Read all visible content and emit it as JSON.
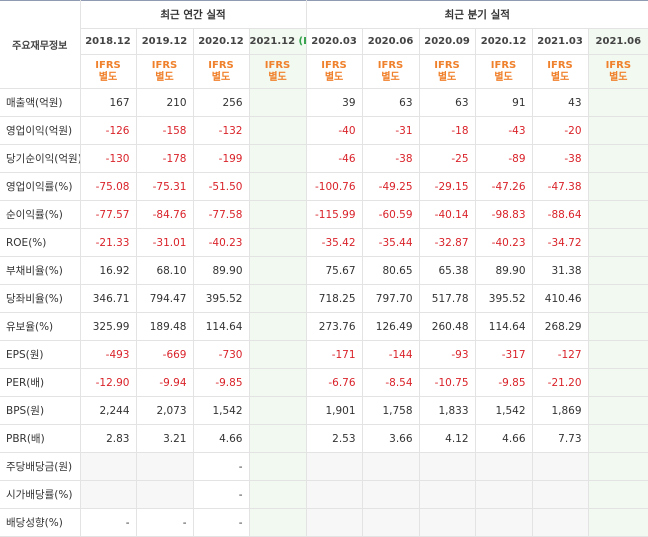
{
  "header": {
    "row_label": "주요재무정보",
    "annual_group": "최근 연간 실적",
    "quarter_group": "최근 분기 실적",
    "annual_periods": [
      "2018.12",
      "2019.12",
      "2020.12",
      "2021.12"
    ],
    "quarter_periods": [
      "2020.03",
      "2020.06",
      "2020.09",
      "2020.12",
      "2021.03",
      "2021.06"
    ],
    "estimate_mark": "(E)",
    "ifrs_line1": "IFRS",
    "ifrs_line2": "별도"
  },
  "rows": [
    {
      "label": "매출액(억원)",
      "values": [
        "167",
        "210",
        "256",
        "",
        "39",
        "63",
        "63",
        "91",
        "43",
        ""
      ]
    },
    {
      "label": "영업이익(억원)",
      "values": [
        "-126",
        "-158",
        "-132",
        "",
        "-40",
        "-31",
        "-18",
        "-43",
        "-20",
        ""
      ]
    },
    {
      "label": "당기순이익(억원)",
      "values": [
        "-130",
        "-178",
        "-199",
        "",
        "-46",
        "-38",
        "-25",
        "-89",
        "-38",
        ""
      ]
    },
    {
      "label": "영업이익률(%)",
      "values": [
        "-75.08",
        "-75.31",
        "-51.50",
        "",
        "-100.76",
        "-49.25",
        "-29.15",
        "-47.26",
        "-47.38",
        ""
      ]
    },
    {
      "label": "순이익률(%)",
      "values": [
        "-77.57",
        "-84.76",
        "-77.58",
        "",
        "-115.99",
        "-60.59",
        "-40.14",
        "-98.83",
        "-88.64",
        ""
      ]
    },
    {
      "label": "ROE(%)",
      "values": [
        "-21.33",
        "-31.01",
        "-40.23",
        "",
        "-35.42",
        "-35.44",
        "-32.87",
        "-40.23",
        "-34.72",
        ""
      ]
    },
    {
      "label": "부채비율(%)",
      "values": [
        "16.92",
        "68.10",
        "89.90",
        "",
        "75.67",
        "80.65",
        "65.38",
        "89.90",
        "31.38",
        ""
      ]
    },
    {
      "label": "당좌비율(%)",
      "values": [
        "346.71",
        "794.47",
        "395.52",
        "",
        "718.25",
        "797.70",
        "517.78",
        "395.52",
        "410.46",
        ""
      ]
    },
    {
      "label": "유보율(%)",
      "values": [
        "325.99",
        "189.48",
        "114.64",
        "",
        "273.76",
        "126.49",
        "260.48",
        "114.64",
        "268.29",
        ""
      ]
    },
    {
      "label": "EPS(원)",
      "values": [
        "-493",
        "-669",
        "-730",
        "",
        "-171",
        "-144",
        "-93",
        "-317",
        "-127",
        ""
      ]
    },
    {
      "label": "PER(배)",
      "values": [
        "-12.90",
        "-9.94",
        "-9.85",
        "",
        "-6.76",
        "-8.54",
        "-10.75",
        "-9.85",
        "-21.20",
        ""
      ]
    },
    {
      "label": "BPS(원)",
      "values": [
        "2,244",
        "2,073",
        "1,542",
        "",
        "1,901",
        "1,758",
        "1,833",
        "1,542",
        "1,869",
        ""
      ]
    },
    {
      "label": "PBR(배)",
      "values": [
        "2.83",
        "3.21",
        "4.66",
        "",
        "2.53",
        "3.66",
        "4.12",
        "4.66",
        "7.73",
        ""
      ]
    },
    {
      "label": "주당배당금(원)",
      "values": [
        "",
        "",
        "-",
        "",
        "",
        "",
        "",
        "",
        "",
        ""
      ]
    },
    {
      "label": "시가배당률(%)",
      "values": [
        "",
        "",
        "-",
        "",
        "",
        "",
        "",
        "",
        "",
        ""
      ]
    },
    {
      "label": "배당성향(%)",
      "values": [
        "-",
        "-",
        "-",
        "",
        "",
        "",
        "",
        "",
        "",
        ""
      ]
    }
  ],
  "colors": {
    "negative": "#d9232a",
    "ifrs": "#f0812c",
    "estimate_bg": "#f2f9f1",
    "estimate_mark": "#33a04a"
  }
}
